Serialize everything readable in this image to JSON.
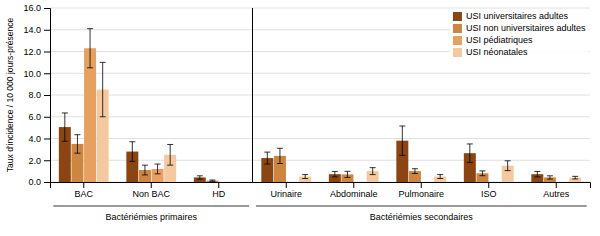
{
  "chart_data": {
    "type": "bar",
    "categories": [
      "BAC",
      "Non BAC",
      "HD",
      "Urinaire",
      "Abdominale",
      "Pulmonaire",
      "ISO",
      "Autres"
    ],
    "series": [
      {
        "name": "USI universitaires adultes",
        "color": "#8B4513",
        "values": [
          5.05,
          2.8,
          0.42,
          2.2,
          0.72,
          3.8,
          2.65,
          0.72
        ],
        "err_lo": [
          1.3,
          0.9,
          0.15,
          0.55,
          0.25,
          1.35,
          0.85,
          0.25
        ],
        "err_hi": [
          1.3,
          0.9,
          0.15,
          0.55,
          0.25,
          1.35,
          0.85,
          0.25
        ]
      },
      {
        "name": "USI non universitaires adultes",
        "color": "#CD853F",
        "values": [
          3.5,
          1.1,
          0.12,
          2.4,
          0.7,
          1.0,
          0.8,
          0.42
        ],
        "err_lo": [
          0.85,
          0.45,
          0.06,
          0.7,
          0.28,
          0.22,
          0.22,
          0.15
        ],
        "err_hi": [
          0.85,
          0.45,
          0.06,
          0.7,
          0.28,
          0.22,
          0.22,
          0.15
        ]
      },
      {
        "name": "USI pédiatriques",
        "color": "#E8A060",
        "values": [
          12.3,
          1.2,
          null,
          null,
          null,
          null,
          null,
          null
        ],
        "err_lo": [
          1.8,
          0.45,
          null,
          null,
          null,
          null,
          null,
          null
        ],
        "err_hi": [
          1.8,
          0.45,
          null,
          null,
          null,
          null,
          null,
          null
        ]
      },
      {
        "name": "USI néonatales",
        "color": "#F5C9A0",
        "values": [
          8.5,
          2.5,
          null,
          0.5,
          1.0,
          0.5,
          1.5,
          0.4
        ],
        "err_lo": [
          2.5,
          0.95,
          null,
          0.18,
          0.32,
          0.18,
          0.45,
          0.12
        ],
        "err_hi": [
          2.5,
          0.95,
          null,
          0.18,
          0.32,
          0.18,
          0.45,
          0.12
        ]
      }
    ],
    "ylabel": "Taux d'incidence / 10 000 jours-présence",
    "ylim": [
      0,
      16
    ],
    "yticks": [
      {
        "value": 0,
        "label": "0.0"
      },
      {
        "value": 2,
        "label": "2.0"
      },
      {
        "value": 4,
        "label": "4.0"
      },
      {
        "value": 6,
        "label": "6.0"
      },
      {
        "value": 8,
        "label": "8.0"
      },
      {
        "value": 10,
        "label": "10.0"
      },
      {
        "value": 12,
        "label": "12.0"
      },
      {
        "value": 14,
        "label": "14.0"
      },
      {
        "value": 16,
        "label": "16.0"
      }
    ],
    "grid": true,
    "legend": "upper right",
    "annotations": [
      {
        "text": "Bactériémies primaires",
        "categories": [
          0,
          1,
          2
        ]
      },
      {
        "text": "Bactériémies secondaires",
        "categories": [
          3,
          4,
          5,
          6,
          7
        ]
      }
    ]
  }
}
